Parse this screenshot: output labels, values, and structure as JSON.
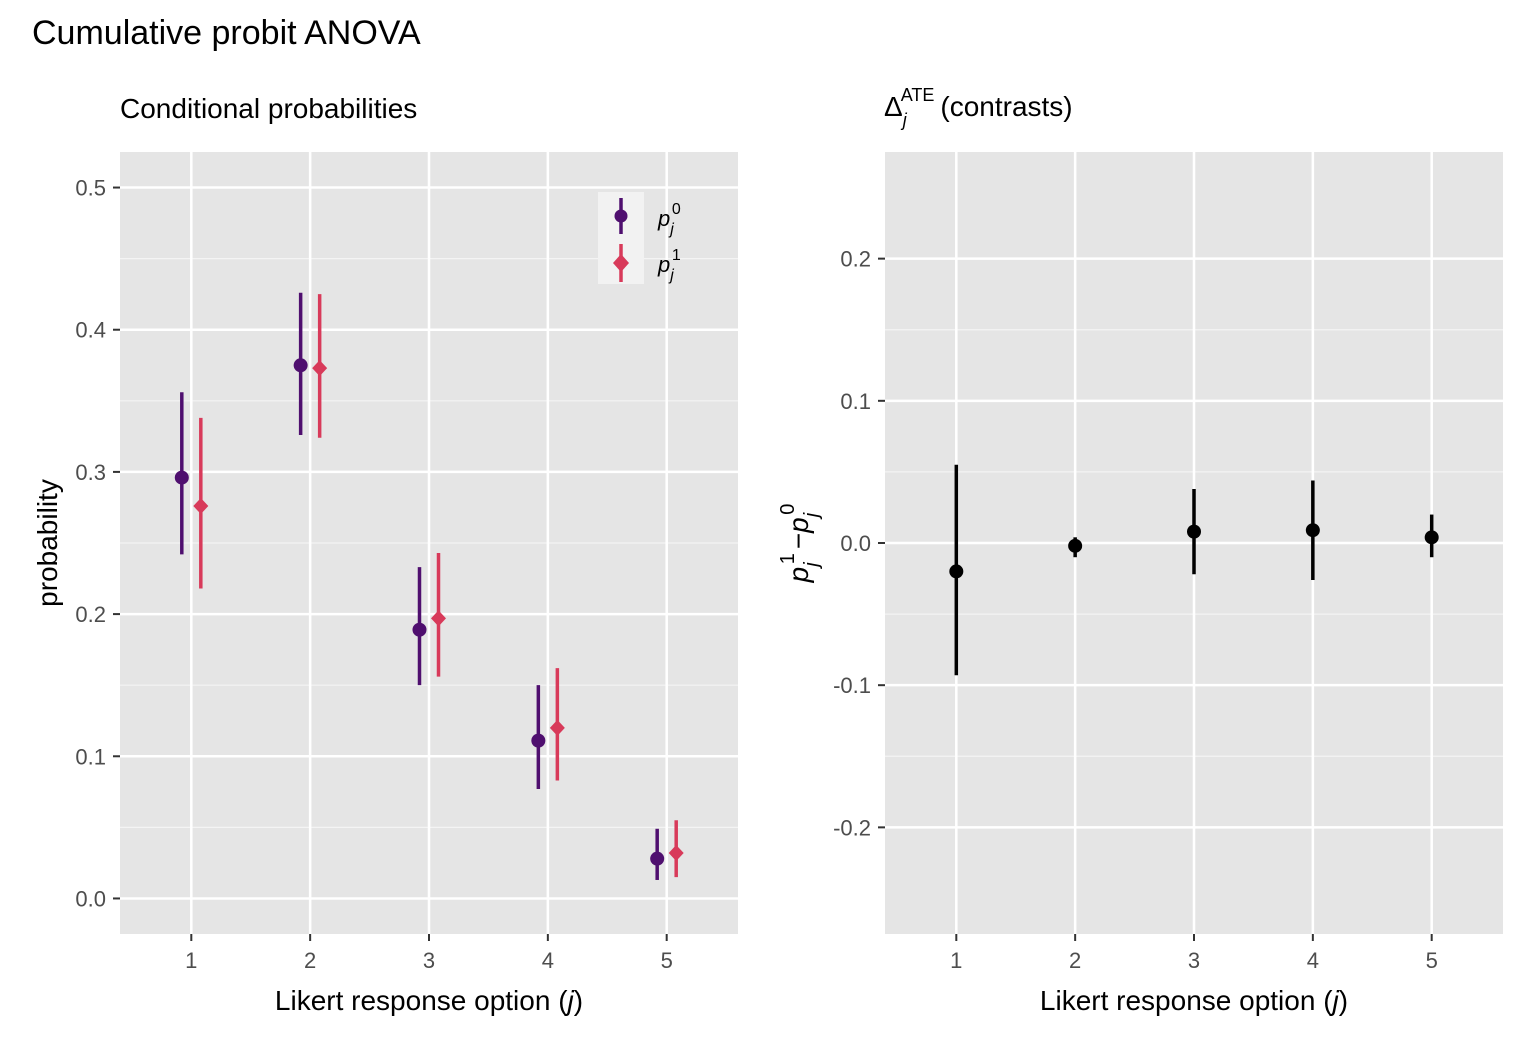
{
  "title": "Cumulative probit ANOVA",
  "colors": {
    "p0": "#4f0f6f",
    "p1": "#d83a5a",
    "contrast": "#000000",
    "panel_bg": "#e5e5e5",
    "grid": "#ffffff"
  },
  "chart_data": [
    {
      "type": "scatter",
      "subtitle": "Conditional probabilities",
      "xlabel": "Likert response option (j)",
      "ylabel": "probability",
      "x": [
        1,
        2,
        3,
        4,
        5
      ],
      "x_tick_labels": [
        "1",
        "2",
        "3",
        "4",
        "5"
      ],
      "y_ticks": [
        0.0,
        0.1,
        0.2,
        0.3,
        0.4,
        0.5
      ],
      "y_tick_labels": [
        "0.0",
        "0.1",
        "0.2",
        "0.3",
        "0.4",
        "0.5"
      ],
      "ylim": [
        -0.025,
        0.525
      ],
      "xlim": [
        0.4,
        5.6
      ],
      "grid": true,
      "legend_position": "top-right",
      "series": [
        {
          "name": "p_j^0",
          "marker": "circle",
          "values": [
            0.296,
            0.375,
            0.189,
            0.111,
            0.028
          ],
          "lower": [
            0.242,
            0.326,
            0.15,
            0.077,
            0.013
          ],
          "upper": [
            0.356,
            0.426,
            0.233,
            0.15,
            0.049
          ]
        },
        {
          "name": "p_j^1",
          "marker": "diamond",
          "values": [
            0.276,
            0.373,
            0.197,
            0.12,
            0.032
          ],
          "lower": [
            0.218,
            0.324,
            0.156,
            0.083,
            0.015
          ],
          "upper": [
            0.338,
            0.425,
            0.243,
            0.162,
            0.055
          ]
        }
      ]
    },
    {
      "type": "scatter",
      "subtitle": "Δ_j^ATE (contrasts)",
      "xlabel": "Likert response option (j)",
      "ylabel": "p_j^1 − p_j^0",
      "x": [
        1,
        2,
        3,
        4,
        5
      ],
      "x_tick_labels": [
        "1",
        "2",
        "3",
        "4",
        "5"
      ],
      "y_ticks": [
        -0.2,
        -0.1,
        0.0,
        0.1,
        0.2
      ],
      "y_tick_labels": [
        "-0.2",
        "-0.1",
        "0.0",
        "0.1",
        "0.2"
      ],
      "ylim": [
        -0.275,
        0.275
      ],
      "xlim": [
        0.4,
        5.6
      ],
      "grid": true,
      "series": [
        {
          "marker": "circle",
          "values": [
            -0.02,
            -0.002,
            0.008,
            0.009,
            0.004
          ],
          "lower": [
            -0.093,
            -0.01,
            -0.022,
            -0.026,
            -0.01
          ],
          "upper": [
            0.055,
            0.004,
            0.038,
            0.044,
            0.02
          ]
        }
      ]
    }
  ]
}
